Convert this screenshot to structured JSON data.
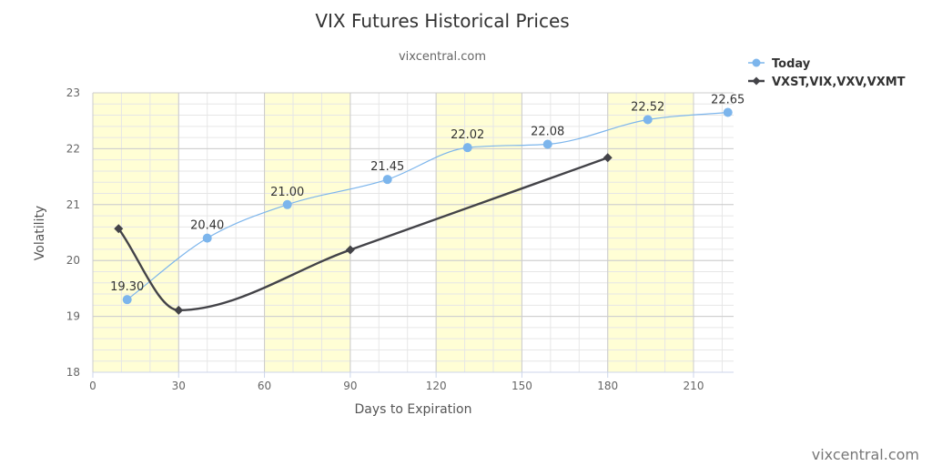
{
  "chart_data": {
    "type": "line",
    "title": "VIX Futures Historical Prices",
    "subtitle": "vixcentral.com",
    "xlabel": "Days to Expiration",
    "ylabel": "Volatility",
    "xlim": [
      0,
      224
    ],
    "ylim": [
      18,
      23
    ],
    "x_ticks": [
      0,
      30,
      60,
      90,
      120,
      150,
      180,
      210
    ],
    "y_ticks": [
      18,
      19,
      20,
      21,
      22,
      23
    ],
    "x_minor_step": 10,
    "y_minor_step": 0.2,
    "shaded_bands": [
      [
        0,
        30
      ],
      [
        60,
        90
      ],
      [
        120,
        150
      ],
      [
        180,
        210
      ]
    ],
    "shade_color": "#fffed5",
    "grid": true,
    "legend_position": "top-right",
    "series": [
      {
        "name": "Today",
        "color": "#7cb5ec",
        "marker": "circle",
        "x": [
          12,
          40,
          68,
          103,
          131,
          159,
          194,
          222
        ],
        "values": [
          19.3,
          20.4,
          21.0,
          21.45,
          22.02,
          22.08,
          22.52,
          22.65
        ],
        "labels": [
          "19.30",
          "20.40",
          "21.00",
          "21.45",
          "22.02",
          "22.08",
          "22.52",
          "22.65"
        ]
      },
      {
        "name": "VXST,VIX,VXV,VXMT",
        "color": "#434348",
        "marker": "diamond",
        "x": [
          9,
          30,
          90,
          180
        ],
        "values": [
          20.57,
          19.11,
          20.19,
          21.84
        ],
        "labels": []
      }
    ]
  },
  "credit": "vixcentral.com"
}
